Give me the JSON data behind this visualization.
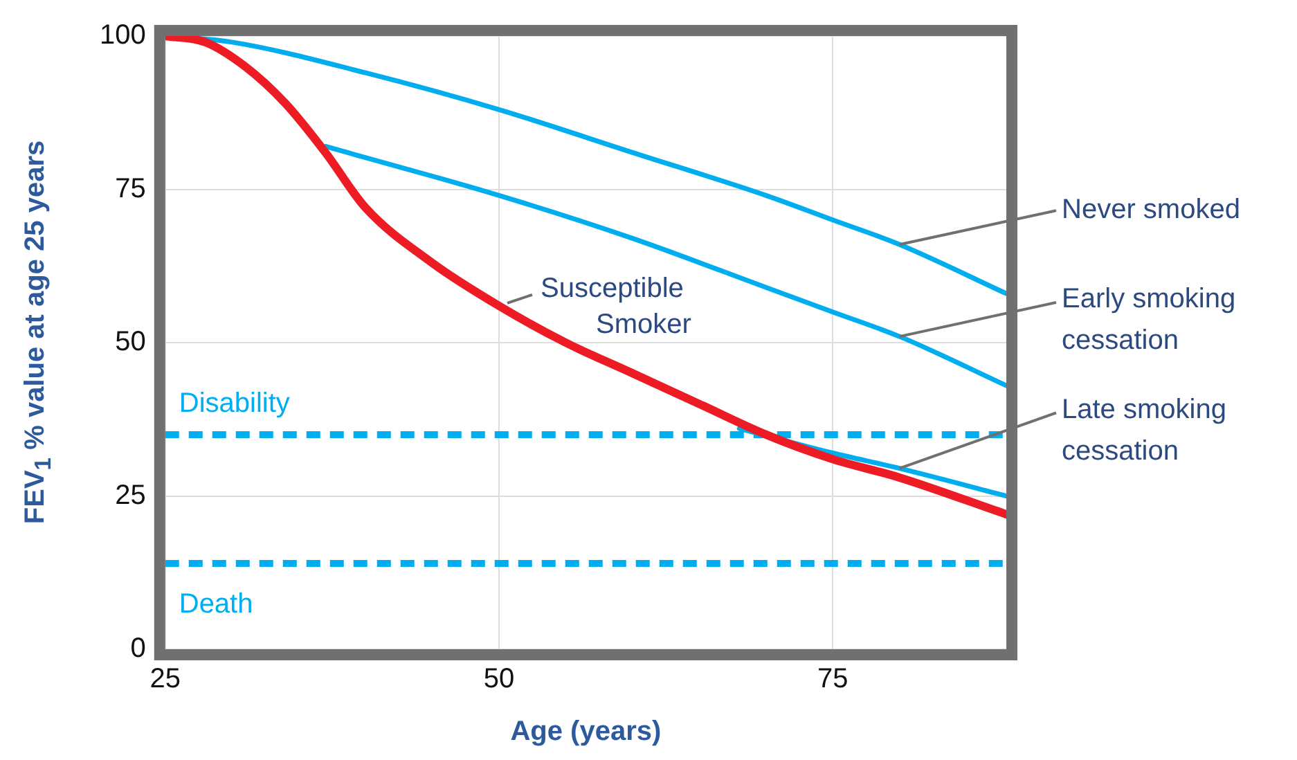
{
  "chart_data": {
    "type": "line",
    "xlabel": "Age (years)",
    "ylabel": "FEV$_{1}$ % value at age 25 years",
    "xlim": [
      25,
      88
    ],
    "ylim": [
      0,
      100
    ],
    "xticks": [
      25,
      50,
      75
    ],
    "yticks": [
      0,
      25,
      50,
      75,
      100
    ],
    "grid": true,
    "legend": false,
    "marker": "none",
    "line_style": "solid",
    "series": [
      {
        "name": "Susceptible Smoker",
        "color": "#ed1c24",
        "x": [
          25,
          28,
          31,
          34,
          37,
          40,
          45,
          50,
          55,
          60,
          65,
          70,
          75,
          80,
          88
        ],
        "values": [
          100,
          99,
          95,
          89,
          81,
          72,
          63,
          56,
          50,
          45,
          40,
          35,
          31,
          28,
          22
        ]
      },
      {
        "name": "Never smoked",
        "color": "#00aeef",
        "x": [
          25,
          30,
          40,
          50,
          60,
          70,
          75,
          80,
          88
        ],
        "values": [
          100,
          99,
          94,
          88,
          81,
          74,
          70,
          66,
          58
        ]
      },
      {
        "name": "Early smoking cessation",
        "color": "#00aeef",
        "x": [
          37,
          50,
          60,
          70,
          75,
          80,
          88
        ],
        "values": [
          82,
          74,
          67,
          59,
          55,
          51,
          43
        ]
      },
      {
        "name": "Late smoking cessation",
        "color": "#00aeef",
        "x": [
          68,
          75,
          80,
          88
        ],
        "values": [
          36,
          32,
          29.5,
          25
        ]
      }
    ],
    "ref_lines": [
      {
        "axis": "y",
        "value": 35,
        "label": "Disability",
        "color": "#00aeef",
        "line_style": "dashed"
      },
      {
        "axis": "y",
        "value": 14,
        "label": "Death",
        "color": "#00aeef",
        "line_style": "dashed"
      }
    ]
  }
}
